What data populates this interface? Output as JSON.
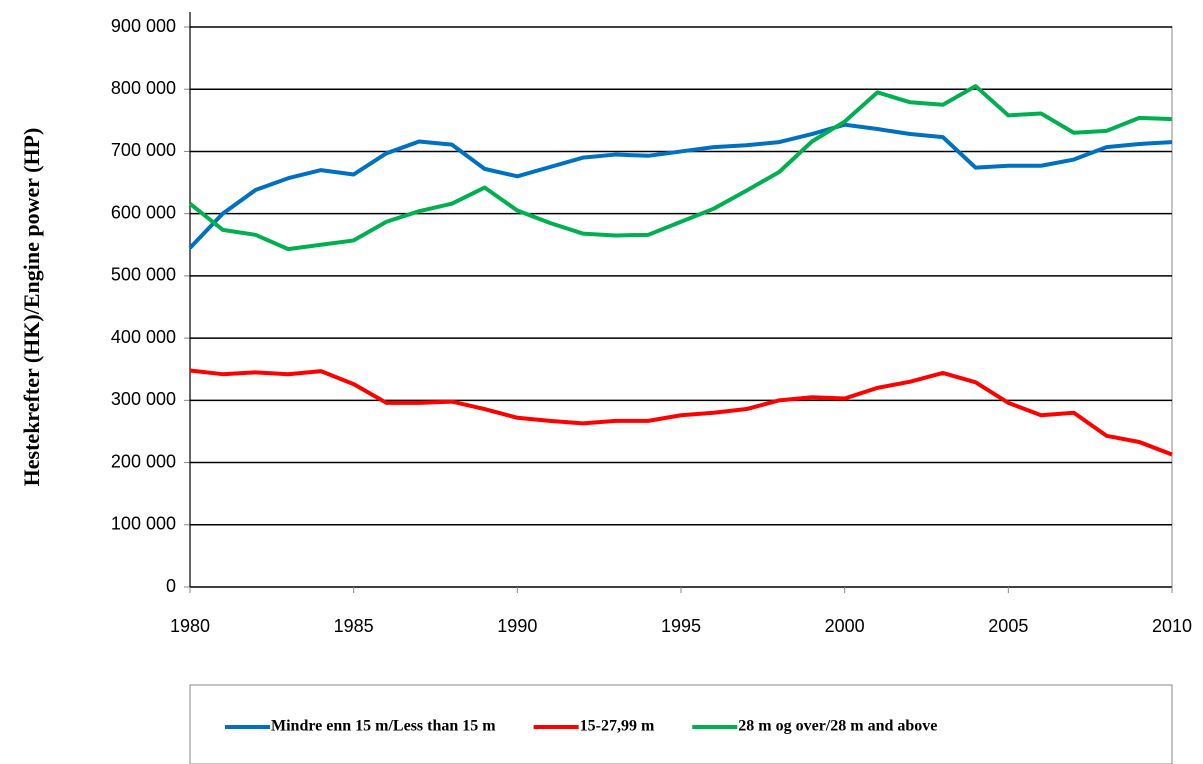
{
  "chart_data": {
    "type": "line",
    "y_label": "Hestekrefter (HK)/Engine power (HP)",
    "x": [
      1980,
      1981,
      1982,
      1983,
      1984,
      1985,
      1986,
      1987,
      1988,
      1989,
      1990,
      1991,
      1992,
      1993,
      1994,
      1995,
      1996,
      1997,
      1998,
      1999,
      2000,
      2001,
      2002,
      2003,
      2004,
      2005,
      2006,
      2007,
      2008,
      2009,
      2010
    ],
    "series": [
      {
        "name": "Mindre enn 15 m/Less than 15 m",
        "color": "#0070c0",
        "values": [
          545000,
          600000,
          638000,
          657000,
          670000,
          663000,
          697000,
          716000,
          711000,
          672000,
          660000,
          675000,
          690000,
          695000,
          693000,
          700000,
          707000,
          710000,
          715000,
          728000,
          743000,
          736000,
          728000,
          723000,
          674000,
          677000,
          677000,
          687000,
          707000,
          712000,
          715000
        ]
      },
      {
        "name": "15-27,99 m",
        "color": "#ff0000",
        "values": [
          348000,
          342000,
          345000,
          342000,
          347000,
          326000,
          296000,
          296000,
          298000,
          286000,
          272000,
          267000,
          263000,
          267000,
          267000,
          276000,
          280000,
          286000,
          300000,
          305000,
          303000,
          320000,
          330000,
          344000,
          329000,
          296000,
          276000,
          280000,
          243000,
          233000,
          213000
        ]
      },
      {
        "name": "28 m og over/28 m and above",
        "color": "#00b050",
        "values": [
          616000,
          574000,
          566000,
          543000,
          550000,
          557000,
          587000,
          604000,
          616000,
          642000,
          605000,
          585000,
          568000,
          565000,
          566000,
          587000,
          608000,
          637000,
          667000,
          716000,
          748000,
          795000,
          779000,
          775000,
          805000,
          758000,
          761000,
          730000,
          733000,
          754000,
          752000
        ]
      }
    ],
    "xlim": [
      1980,
      2010
    ],
    "xticks": [
      1980,
      1985,
      1990,
      1995,
      2000,
      2005,
      2010
    ],
    "ylim": [
      0,
      900000
    ],
    "yticks": [
      0,
      {
        "value": 100000,
        "label": "100 000"
      },
      {
        "value": 200000,
        "label": "200 000"
      },
      {
        "value": 300000,
        "label": "300 000"
      },
      {
        "value": 400000,
        "label": "400 000"
      },
      {
        "value": 500000,
        "label": "500 000"
      },
      {
        "value": 600000,
        "label": "600 000"
      },
      {
        "value": 700000,
        "label": "700 000"
      },
      {
        "value": 800000,
        "label": "800 000"
      },
      {
        "value": 900000,
        "label": "900 000"
      }
    ],
    "grid": true,
    "legend": "bottom"
  }
}
